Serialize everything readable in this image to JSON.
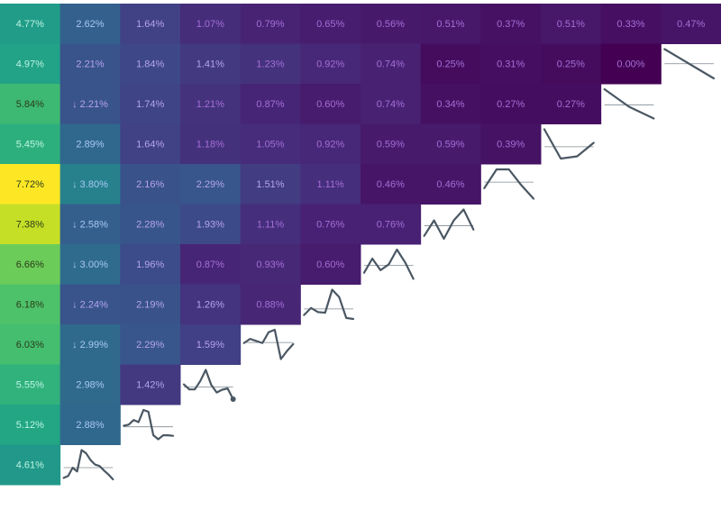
{
  "chart_data": {
    "type": "heatmap",
    "title": "",
    "xlabel": "",
    "ylabel": "",
    "value_format": "percent",
    "color_scale": "viridis",
    "color_range": [
      0.0,
      7.72
    ],
    "arrow_glyph": "↓",
    "rows": [
      {
        "values": [
          4.77,
          2.62,
          1.64,
          1.07,
          0.79,
          0.65,
          0.56,
          0.51,
          0.37,
          0.51,
          0.33,
          0.47
        ],
        "labels": [
          "4.77%",
          "2.62%",
          "1.64%",
          "1.07%",
          "0.79%",
          "0.65%",
          "0.56%",
          "0.51%",
          "0.37%",
          "0.51%",
          "0.33%",
          "0.47%"
        ],
        "arrows": []
      },
      {
        "values": [
          4.97,
          2.21,
          1.84,
          1.41,
          1.23,
          0.92,
          0.74,
          0.25,
          0.31,
          0.25,
          0.0
        ],
        "labels": [
          "4.97%",
          "2.21%",
          "1.84%",
          "1.41%",
          "1.23%",
          "0.92%",
          "0.74%",
          "0.25%",
          "0.31%",
          "0.25%",
          "0.00%"
        ],
        "arrows": []
      },
      {
        "values": [
          5.84,
          2.21,
          1.74,
          1.21,
          0.87,
          0.6,
          0.74,
          0.34,
          0.27,
          0.27
        ],
        "labels": [
          "5.84%",
          "2.21%",
          "1.74%",
          "1.21%",
          "0.87%",
          "0.60%",
          "0.74%",
          "0.34%",
          "0.27%",
          "0.27%"
        ],
        "arrows": [
          1
        ]
      },
      {
        "values": [
          5.45,
          2.89,
          1.64,
          1.18,
          1.05,
          0.92,
          0.59,
          0.59,
          0.39
        ],
        "labels": [
          "5.45%",
          "2.89%",
          "1.64%",
          "1.18%",
          "1.05%",
          "0.92%",
          "0.59%",
          "0.59%",
          "0.39%"
        ],
        "arrows": []
      },
      {
        "values": [
          7.72,
          3.8,
          2.16,
          2.29,
          1.51,
          1.11,
          0.46,
          0.46
        ],
        "labels": [
          "7.72%",
          "3.80%",
          "2.16%",
          "2.29%",
          "1.51%",
          "1.11%",
          "0.46%",
          "0.46%"
        ],
        "arrows": [
          1
        ]
      },
      {
        "values": [
          7.38,
          2.58,
          2.28,
          1.93,
          1.11,
          0.76,
          0.76
        ],
        "labels": [
          "7.38%",
          "2.58%",
          "2.28%",
          "1.93%",
          "1.11%",
          "0.76%",
          "0.76%"
        ],
        "arrows": [
          1
        ]
      },
      {
        "values": [
          6.66,
          3.0,
          1.96,
          0.87,
          0.93,
          0.6
        ],
        "labels": [
          "6.66%",
          "3.00%",
          "1.96%",
          "0.87%",
          "0.93%",
          "0.60%"
        ],
        "arrows": [
          1
        ]
      },
      {
        "values": [
          6.18,
          2.24,
          2.19,
          1.26,
          0.88
        ],
        "labels": [
          "6.18%",
          "2.24%",
          "2.19%",
          "1.26%",
          "0.88%"
        ],
        "arrows": [
          1
        ]
      },
      {
        "values": [
          6.03,
          2.99,
          2.29,
          1.59
        ],
        "labels": [
          "6.03%",
          "2.99%",
          "2.29%",
          "1.59%"
        ],
        "arrows": [
          1
        ]
      },
      {
        "values": [
          5.55,
          2.98,
          1.42
        ],
        "labels": [
          "5.55%",
          "2.98%",
          "1.42%"
        ],
        "arrows": []
      },
      {
        "values": [
          5.12,
          2.88
        ],
        "labels": [
          "5.12%",
          "2.88%"
        ],
        "arrows": []
      },
      {
        "values": [
          4.61
        ],
        "labels": [
          "4.61%"
        ],
        "arrows": []
      }
    ],
    "sparkline_color": "#4a5763",
    "sparklines": [
      {
        "row": 0,
        "values": [
          0.47
        ],
        "end_dot": true
      },
      {
        "row": 1,
        "values": [
          0.51,
          0.25
        ],
        "end_dot": false
      },
      {
        "row": 2,
        "values": [
          0.37,
          0.31,
          0.27
        ],
        "end_dot": false
      },
      {
        "row": 3,
        "values": [
          0.51,
          0.25,
          0.27,
          0.39
        ],
        "end_dot": false
      },
      {
        "row": 4,
        "values": [
          0.56,
          0.74,
          0.74,
          0.59,
          0.46
        ],
        "end_dot": false
      },
      {
        "row": 5,
        "values": [
          0.65,
          0.92,
          0.6,
          0.92,
          1.11,
          0.76
        ],
        "end_dot": false
      },
      {
        "row": 6,
        "values": [
          0.79,
          1.23,
          0.87,
          1.05,
          1.51,
          1.11,
          0.6
        ],
        "end_dot": false
      },
      {
        "row": 7,
        "values": [
          1.07,
          1.41,
          1.21,
          1.18,
          2.29,
          1.93,
          0.93,
          0.88
        ],
        "end_dot": false
      },
      {
        "row": 8,
        "values": [
          1.64,
          1.84,
          1.74,
          1.64,
          2.16,
          2.28,
          0.87,
          1.26,
          1.59
        ],
        "end_dot": false
      },
      {
        "row": 9,
        "values": [
          2.62,
          2.21,
          2.21,
          2.89,
          3.8,
          2.58,
          1.96,
          2.19,
          2.29,
          1.42
        ],
        "end_dot": true
      },
      {
        "row": 10,
        "values": [
          4.77,
          4.97,
          5.84,
          5.45,
          7.72,
          7.38,
          3.0,
          2.24,
          2.99,
          2.98,
          2.88
        ],
        "end_dot": false
      },
      {
        "row": 11,
        "values": [
          4.77,
          4.97,
          5.84,
          5.45,
          7.72,
          7.38,
          6.66,
          6.18,
          6.03,
          5.55,
          5.12,
          4.61
        ],
        "end_dot": false
      }
    ]
  }
}
